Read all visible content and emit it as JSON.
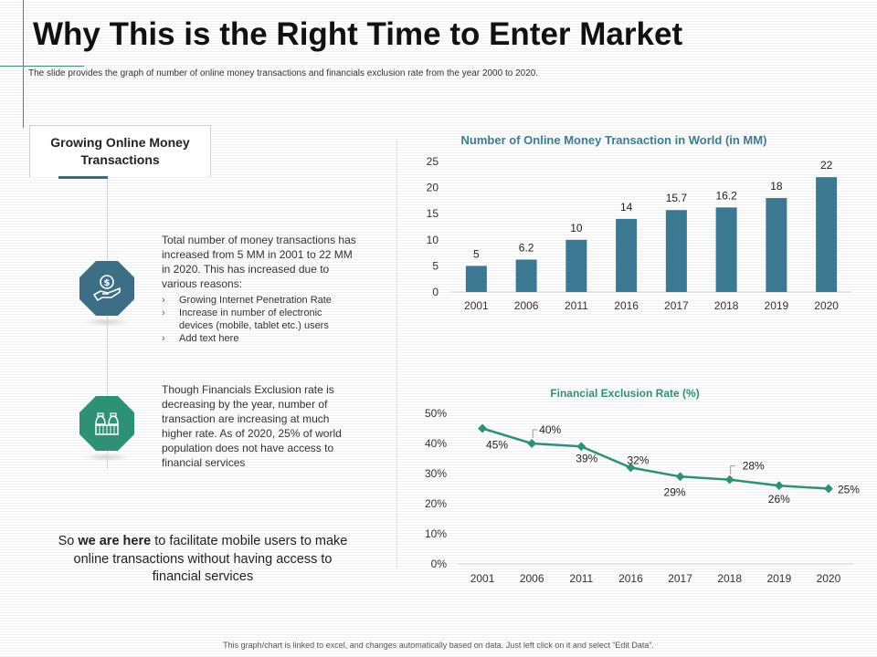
{
  "slide": {
    "title": "Why This is the Right Time to Enter Market",
    "subtitle": "The slide provides the graph of number of online money transactions and financials exclusion rate from the year 2000 to 2020.",
    "footer": "This graph/chart is linked to excel, and changes automatically based on data. Just left click on it and select “Edit Data”."
  },
  "left_panel": {
    "heading": "Growing Online Money Transactions",
    "item1": {
      "text": "Total number of money transactions has increased from 5 MM in 2001 to 22 MM in 2020. This has increased due to various reasons:",
      "bullets": [
        "Growing Internet Penetration Rate",
        "Increase in number of electronic devices (mobile, tablet etc.) users",
        "Add text here"
      ],
      "icon": "money-hand-icon"
    },
    "item2": {
      "text": "Though Financials Exclusion rate is decreasing by the year, number of transaction are increasing at much higher rate. As of 2020, 25% of world population does not have access to financial services",
      "icon": "money-bags-icon"
    },
    "conclusion": {
      "prefix": "So ",
      "bold": "we are here",
      "suffix": " to facilitate mobile users to make online transactions without having access to financial services"
    }
  },
  "colors": {
    "bar": "#3c7891",
    "line": "#2e9176",
    "icon1_bg": "#3c6e86",
    "icon2_bg": "#2e9176"
  },
  "chart_data": [
    {
      "type": "bar",
      "title": "Number of Online Money Transaction in World (in MM)",
      "categories": [
        "2001",
        "2006",
        "2011",
        "2016",
        "2017",
        "2018",
        "2019",
        "2020"
      ],
      "values": [
        5,
        6.2,
        10,
        14,
        15.7,
        16.2,
        18,
        22
      ],
      "labels": [
        "5",
        "6.2",
        "10",
        "14",
        "15.7",
        "16.2",
        "18",
        "22"
      ],
      "yticks": [
        "0",
        "5",
        "10",
        "15",
        "20",
        "25"
      ],
      "ylim": [
        0,
        25
      ],
      "grid": false,
      "xlabel": "",
      "ylabel": ""
    },
    {
      "type": "line",
      "title": "Financial Exclusion Rate (%)",
      "categories": [
        "2001",
        "2006",
        "2011",
        "2016",
        "2017",
        "2018",
        "2019",
        "2020"
      ],
      "values": [
        45,
        40,
        39,
        32,
        29,
        28,
        26,
        25
      ],
      "labels": [
        "45%",
        "40%",
        "39%",
        "32%",
        "29%",
        "28%",
        "26%",
        "25%"
      ],
      "yticks": [
        "0%",
        "10%",
        "20%",
        "30%",
        "40%",
        "50%"
      ],
      "ylim": [
        0,
        50
      ],
      "grid": false,
      "xlabel": "",
      "ylabel": ""
    }
  ]
}
